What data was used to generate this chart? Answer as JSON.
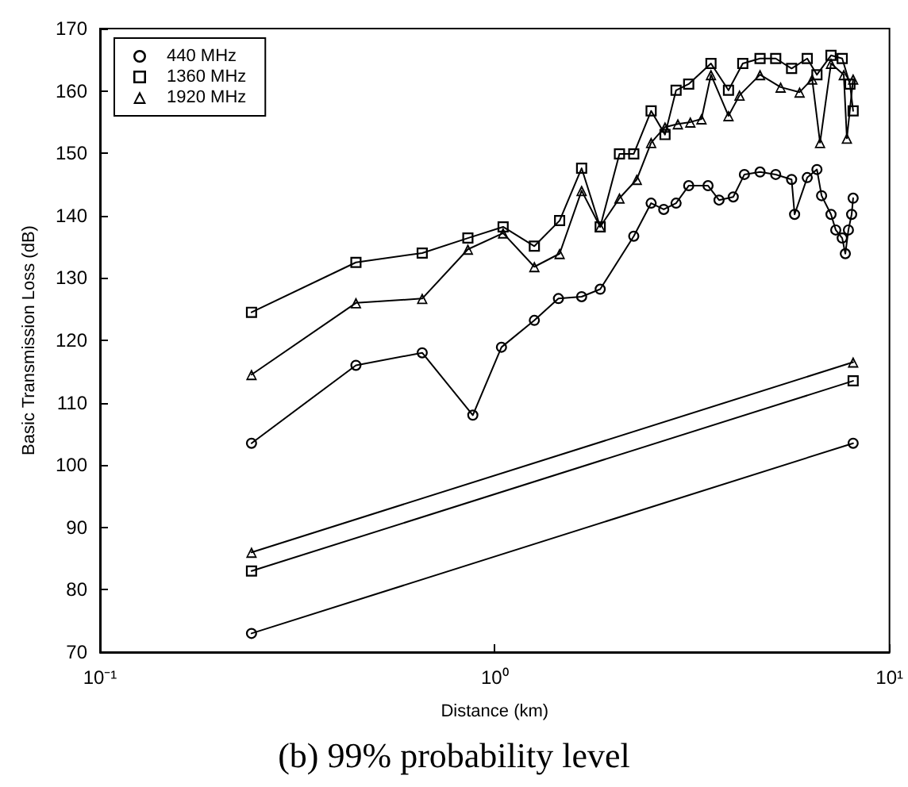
{
  "chart_data": {
    "type": "line",
    "title": "(b) 99% probability level",
    "xlabel": "Distance (km)",
    "ylabel": "Basic Transmission Loss (dB)",
    "log": "x",
    "xlim": [
      0.1,
      10
    ],
    "xticks": [
      {
        "value": 0.1,
        "label": "10⁻¹"
      },
      {
        "value": 1,
        "label": "10⁰"
      },
      {
        "value": 10,
        "label": "10¹"
      }
    ],
    "ylim": [
      70,
      170
    ],
    "yticks": [
      70,
      80,
      90,
      100,
      110,
      120,
      130,
      140,
      150,
      160,
      170
    ],
    "grid": false,
    "legend": "top left",
    "line_style": "solid",
    "series": [
      {
        "name": "440 MHz",
        "color": "#000000",
        "marker": "circle",
        "x": [
          0.242,
          0.445,
          0.655,
          0.88,
          1.04,
          1.26,
          1.45,
          1.66,
          1.85,
          2.25,
          2.49,
          2.68,
          2.88,
          3.1,
          3.47,
          3.7,
          4.02,
          4.29,
          4.7,
          5.15,
          5.65,
          5.75,
          6.19,
          6.55,
          6.73,
          7.11,
          7.31,
          7.59,
          7.73,
          7.87,
          8.02,
          8.09
        ],
        "values": [
          103.5,
          116,
          118,
          108,
          118.9,
          123.2,
          126.7,
          127,
          128.2,
          136.7,
          142,
          141,
          142,
          144.8,
          144.8,
          142.5,
          143,
          146.6,
          147,
          146.6,
          145.8,
          140.2,
          146.1,
          147.4,
          143.2,
          140.2,
          137.7,
          136.4,
          133.9,
          137.7,
          140.2,
          142.8
        ]
      },
      {
        "name": "1360 MHz",
        "color": "#000000",
        "marker": "square",
        "x": [
          0.242,
          0.445,
          0.655,
          0.855,
          1.05,
          1.26,
          1.46,
          1.66,
          1.85,
          2.07,
          2.25,
          2.49,
          2.7,
          2.88,
          3.1,
          3.53,
          3.91,
          4.25,
          4.7,
          5.15,
          5.65,
          6.19,
          6.55,
          7.11,
          7.59,
          7.94,
          8.09
        ],
        "values": [
          124.5,
          132.5,
          134,
          136.4,
          138.2,
          135.1,
          139.2,
          147.6,
          138.2,
          149.9,
          149.9,
          156.8,
          153,
          160.1,
          161.1,
          164.4,
          160.1,
          164.4,
          165.2,
          165.2,
          163.6,
          165.2,
          162.6,
          165.7,
          165.2,
          161.1,
          156.8
        ]
      },
      {
        "name": "1920 MHz",
        "color": "#000000",
        "marker": "triangle",
        "x": [
          0.242,
          0.445,
          0.655,
          0.855,
          1.05,
          1.26,
          1.46,
          1.66,
          1.85,
          2.07,
          2.29,
          2.49,
          2.7,
          2.91,
          3.13,
          3.34,
          3.53,
          3.91,
          4.17,
          4.7,
          5.3,
          5.92,
          6.37,
          6.67,
          7.11,
          7.66,
          7.8,
          8.09
        ],
        "values": [
          114.5,
          126,
          126.7,
          134.6,
          137.2,
          131.8,
          133.9,
          144,
          138.2,
          142.8,
          145.8,
          151.7,
          154.2,
          154.7,
          155,
          155.5,
          162.6,
          156,
          159.3,
          162.6,
          160.6,
          159.8,
          161.9,
          151.7,
          164.4,
          162.6,
          152.4,
          161.9
        ]
      },
      {
        "color": "#000000",
        "marker": "circle",
        "x": [
          0.242,
          8.09
        ],
        "values": [
          73,
          103.5
        ]
      },
      {
        "color": "#000000",
        "marker": "square",
        "x": [
          0.242,
          8.09
        ],
        "values": [
          83,
          113.5
        ]
      },
      {
        "color": "#000000",
        "marker": "triangle",
        "x": [
          0.242,
          8.09
        ],
        "values": [
          86,
          116.5
        ]
      }
    ]
  }
}
